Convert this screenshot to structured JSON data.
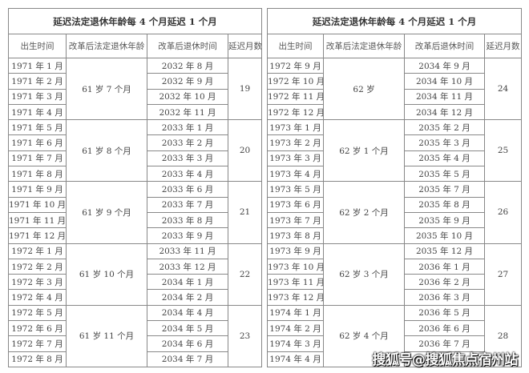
{
  "panels": [
    {
      "title": "延迟法定退休年龄每 4 个月延迟 1 个月",
      "headers": [
        "出生时间",
        "改革后法定退休年龄",
        "改革后退休时间",
        "延迟月数"
      ],
      "groups": [
        {
          "age": "61 岁 7 个月",
          "delay": "19",
          "rows": [
            [
              "1971 年 1 月",
              "2032 年 8 月"
            ],
            [
              "1971 年 2 月",
              "2032 年 9 月"
            ],
            [
              "1971 年 3 月",
              "2032 年 10 月"
            ],
            [
              "1971 年 4 月",
              "2032 年 11 月"
            ]
          ]
        },
        {
          "age": "61 岁 8 个月",
          "delay": "20",
          "rows": [
            [
              "1971 年 5 月",
              "2033 年 1 月"
            ],
            [
              "1971 年 6 月",
              "2033 年 2 月"
            ],
            [
              "1971 年 7 月",
              "2033 年 3 月"
            ],
            [
              "1971 年 8 月",
              "2033 年 4 月"
            ]
          ]
        },
        {
          "age": "61 岁 9 个月",
          "delay": "21",
          "rows": [
            [
              "1971 年 9 月",
              "2033 年 6 月"
            ],
            [
              "1971 年 10 月",
              "2033 年 7 月"
            ],
            [
              "1971 年 11 月",
              "2033 年 8 月"
            ],
            [
              "1971 年 12 月",
              "2033 年 9 月"
            ]
          ]
        },
        {
          "age": "61 岁 10 个月",
          "delay": "22",
          "rows": [
            [
              "1972 年 1 月",
              "2033 年 11 月"
            ],
            [
              "1972 年 2 月",
              "2033 年 12 月"
            ],
            [
              "1972 年 3 月",
              "2034 年 1 月"
            ],
            [
              "1972 年 4 月",
              "2034 年 2 月"
            ]
          ]
        },
        {
          "age": "61 岁 11 个月",
          "delay": "23",
          "rows": [
            [
              "1972 年 5 月",
              "2034 年 4 月"
            ],
            [
              "1972 年 6 月",
              "2034 年 5 月"
            ],
            [
              "1972 年 7 月",
              "2034 年 6 月"
            ],
            [
              "1972 年 8 月",
              "2034 年 7 月"
            ]
          ]
        }
      ]
    },
    {
      "title": "延迟法定退休年龄每 4 个月延迟 1 个月",
      "headers": [
        "出生时间",
        "改革后法定退休年龄",
        "改革后退休时间",
        "延迟月数"
      ],
      "groups": [
        {
          "age": "62 岁",
          "delay": "24",
          "rows": [
            [
              "1972 年 9 月",
              "2034 年 9 月"
            ],
            [
              "1972 年 10 月",
              "2034 年 10 月"
            ],
            [
              "1972 年 11 月",
              "2034 年 11 月"
            ],
            [
              "1972 年 12 月",
              "2034 年 12 月"
            ]
          ]
        },
        {
          "age": "62 岁 1 个月",
          "delay": "25",
          "rows": [
            [
              "1973 年 1 月",
              "2035 年 2 月"
            ],
            [
              "1973 年 2 月",
              "2035 年 3 月"
            ],
            [
              "1973 年 3 月",
              "2035 年 4 月"
            ],
            [
              "1973 年 4 月",
              "2035 年 5 月"
            ]
          ]
        },
        {
          "age": "62 岁 2 个月",
          "delay": "26",
          "rows": [
            [
              "1973 年 5 月",
              "2035 年 7 月"
            ],
            [
              "1973 年 6 月",
              "2035 年 8 月"
            ],
            [
              "1973 年 7 月",
              "2035 年 9 月"
            ],
            [
              "1973 年 8 月",
              "2035 年 10 月"
            ]
          ]
        },
        {
          "age": "62 岁 3 个月",
          "delay": "27",
          "rows": [
            [
              "1973 年 9 月",
              "2035 年 12 月"
            ],
            [
              "1973 年 10 月",
              "2036 年 1 月"
            ],
            [
              "1973 年 11 月",
              "2036 年 2 月"
            ],
            [
              "1973 年 12 月",
              "2036 年 3 月"
            ]
          ]
        },
        {
          "age": "62 岁 4 个月",
          "delay": "28",
          "rows": [
            [
              "1974 年 1 月",
              "2036 年 5 月"
            ],
            [
              "1974 年 2 月",
              "2036 年 6 月"
            ],
            [
              "1974 年 3 月",
              "2036 年 7 月"
            ],
            [
              "1974 年 4 月",
              ""
            ]
          ]
        }
      ]
    }
  ],
  "watermark": "搜狐号@搜狐焦点宿州站"
}
